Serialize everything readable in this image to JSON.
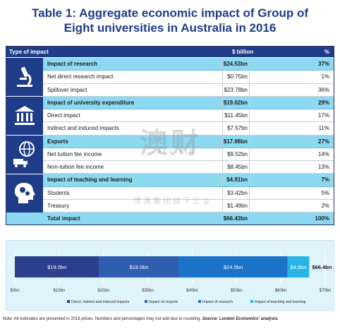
{
  "title_line1": "Table 1: Aggregate economic impact of Group of",
  "title_line2": "Eight universities in Australia in 2016",
  "table": {
    "headers": {
      "type": "Type of impact",
      "value": "$ billion",
      "pct": "%"
    },
    "rows": [
      {
        "label": "Impact of research",
        "value": "$24.53bn",
        "pct": "37%",
        "highlight": true
      },
      {
        "label": "Net direct research impact",
        "value": "$0.75bn",
        "pct": "1%"
      },
      {
        "label": "Spillover impact",
        "value": "$23.78bn",
        "pct": "36%"
      },
      {
        "label": "Impact of university expenditure",
        "value": "$19.02bn",
        "pct": "29%",
        "highlight": true
      },
      {
        "label": "Direct impact",
        "value": "$11.45bn",
        "pct": "17%"
      },
      {
        "label": "Indirect and induced impacts",
        "value": "$7.57bn",
        "pct": "11%"
      },
      {
        "label": "Exports",
        "value": "$17.98bn",
        "pct": "27%",
        "highlight": true
      },
      {
        "label": "Net tuition fee income",
        "value": "$9.52bn",
        "pct": "14%"
      },
      {
        "label": "Non-tuition fee income",
        "value": "$8.45bn",
        "pct": "13%"
      },
      {
        "label": "Impact of teaching and learning",
        "value": "$4.91bn",
        "pct": "7%",
        "highlight": true
      },
      {
        "label": "Students",
        "value": "$3.42bn",
        "pct": "5%"
      },
      {
        "label": "Treasury",
        "value": "$1.49bn",
        "pct": "2%"
      }
    ],
    "total": {
      "label": "Total impact",
      "value": "$66.43bn",
      "pct": "100%"
    }
  },
  "watermark": {
    "big": "澳财",
    "mid": "ALL FIN",
    "small": "博满集团旗下企业"
  },
  "chart_data": {
    "type": "bar",
    "orientation": "horizontal-stacked",
    "xlim": [
      0,
      70
    ],
    "ticks": [
      "$0bn",
      "$10bn",
      "$20bn",
      "$30bn",
      "$40bn",
      "$50bn",
      "$60bn",
      "$70bn"
    ],
    "series": [
      {
        "name": "Direct, indirect and induced impacts",
        "value": 19.0,
        "label": "$19.0bn",
        "color": "#2b3f8c"
      },
      {
        "name": "Impact on exports",
        "value": 18.0,
        "label": "$18.0bn",
        "color": "#2f5db0"
      },
      {
        "name": "Impact of research",
        "value": 24.5,
        "label": "$24.5bn",
        "color": "#1a73c6"
      },
      {
        "name": "Impact of teaching and learning",
        "value": 4.9,
        "label": "$4.9bn",
        "color": "#28b4e6"
      }
    ],
    "total_label": "$66.4bn"
  },
  "note_text": "Note: All estimates are presented in 2016 prices. Numbers and percentages may not add due to rounding. ",
  "note_source": "Source: London Economics' analysis."
}
